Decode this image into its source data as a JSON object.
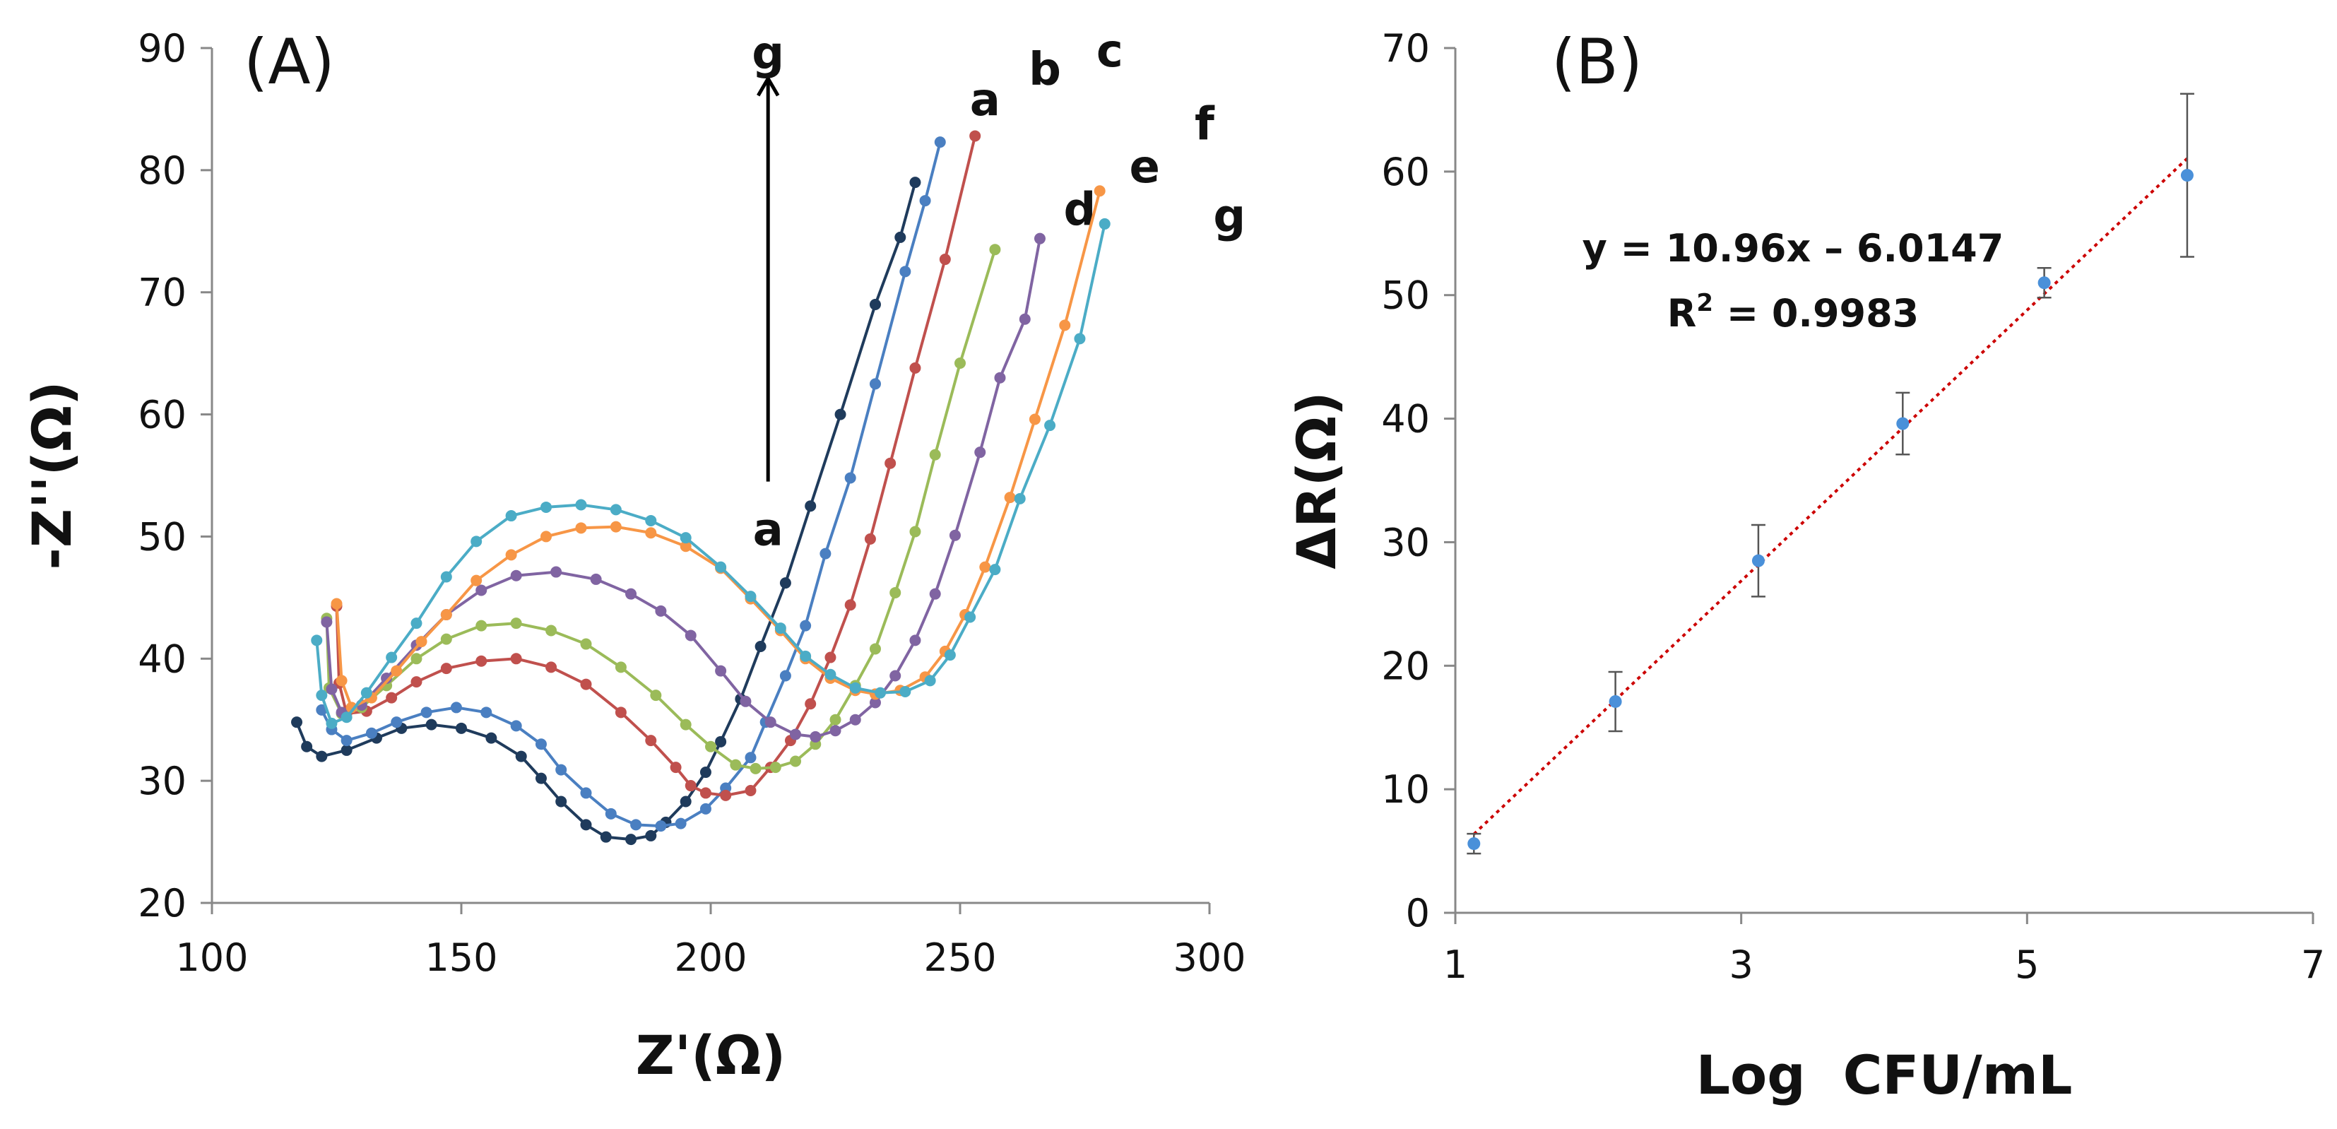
{
  "chart_data": [
    {
      "type": "line",
      "panel": "(A)",
      "xlabel": "Z'(Ω)",
      "ylabel": "-Z''(Ω)",
      "xlim": [
        100,
        300
      ],
      "ylim": [
        20,
        90
      ],
      "xticks": [
        100,
        150,
        200,
        250,
        300
      ],
      "yticks": [
        20,
        30,
        40,
        50,
        60,
        70,
        80,
        90
      ],
      "arrow": {
        "from_label": "a",
        "to_label": "g",
        "x": 211.5,
        "y_start": 54.5,
        "y_end": 87.5
      },
      "series": [
        {
          "name": "a",
          "color": "#1f3b5c",
          "points": [
            [
              117,
              34.8
            ],
            [
              119,
              32.8
            ],
            [
              122,
              32.0
            ],
            [
              127,
              32.5
            ],
            [
              133,
              33.5
            ],
            [
              138,
              34.3
            ],
            [
              144,
              34.6
            ],
            [
              150,
              34.3
            ],
            [
              156,
              33.5
            ],
            [
              162,
              32.0
            ],
            [
              166,
              30.2
            ],
            [
              170,
              28.3
            ],
            [
              175,
              26.4
            ],
            [
              179,
              25.4
            ],
            [
              184,
              25.2
            ],
            [
              188,
              25.5
            ],
            [
              191,
              26.6
            ],
            [
              195,
              28.3
            ],
            [
              199,
              30.7
            ],
            [
              202,
              33.2
            ],
            [
              206,
              36.7
            ],
            [
              210,
              41.0
            ],
            [
              215,
              46.2
            ],
            [
              220,
              52.5
            ],
            [
              226,
              60.0
            ],
            [
              233,
              69.0
            ],
            [
              238,
              74.5
            ],
            [
              241,
              79.0
            ]
          ],
          "label_pos": [
            255,
            84.5
          ]
        },
        {
          "name": "b",
          "color": "#4a7fc1",
          "points": [
            [
              122,
              35.8
            ],
            [
              124,
              34.2
            ],
            [
              127,
              33.3
            ],
            [
              132,
              33.9
            ],
            [
              137,
              34.8
            ],
            [
              143,
              35.6
            ],
            [
              149,
              36.0
            ],
            [
              155,
              35.6
            ],
            [
              161,
              34.5
            ],
            [
              166,
              33.0
            ],
            [
              170,
              30.9
            ],
            [
              175,
              29.0
            ],
            [
              180,
              27.3
            ],
            [
              185,
              26.4
            ],
            [
              190,
              26.3
            ],
            [
              194,
              26.5
            ],
            [
              199,
              27.7
            ],
            [
              203,
              29.4
            ],
            [
              208,
              31.9
            ],
            [
              211,
              34.8
            ],
            [
              215,
              38.6
            ],
            [
              219,
              42.7
            ],
            [
              223,
              48.6
            ],
            [
              228,
              54.8
            ],
            [
              233,
              62.5
            ],
            [
              239,
              71.7
            ],
            [
              243,
              77.5
            ],
            [
              246,
              82.3
            ]
          ],
          "label_pos": [
            267,
            87.0
          ]
        },
        {
          "name": "c",
          "color": "#c0504d",
          "points": [
            [
              125,
              44.3
            ],
            [
              125.5,
              38.0
            ],
            [
              127,
              35.5
            ],
            [
              131,
              35.7
            ],
            [
              136,
              36.8
            ],
            [
              141,
              38.1
            ],
            [
              147,
              39.2
            ],
            [
              154,
              39.8
            ],
            [
              161,
              40.0
            ],
            [
              168,
              39.3
            ],
            [
              175,
              37.9
            ],
            [
              182,
              35.6
            ],
            [
              188,
              33.3
            ],
            [
              193,
              31.1
            ],
            [
              196,
              29.6
            ],
            [
              199,
              29.0
            ],
            [
              203,
              28.8
            ],
            [
              208,
              29.2
            ],
            [
              212,
              31.1
            ],
            [
              216,
              33.3
            ],
            [
              220,
              36.3
            ],
            [
              224,
              40.1
            ],
            [
              228,
              44.4
            ],
            [
              232,
              49.8
            ],
            [
              236,
              56.0
            ],
            [
              241,
              63.8
            ],
            [
              247,
              72.7
            ],
            [
              253,
              82.8
            ]
          ],
          "label_pos": [
            280,
            88.5
          ]
        },
        {
          "name": "d",
          "color": "#9bbb59",
          "points": [
            [
              123,
              43.3
            ],
            [
              123.5,
              37.6
            ],
            [
              126,
              35.5
            ],
            [
              130,
              36.0
            ],
            [
              135,
              37.8
            ],
            [
              141,
              40.0
            ],
            [
              147,
              41.6
            ],
            [
              154,
              42.7
            ],
            [
              161,
              42.9
            ],
            [
              168,
              42.3
            ],
            [
              175,
              41.2
            ],
            [
              182,
              39.3
            ],
            [
              189,
              37.0
            ],
            [
              195,
              34.6
            ],
            [
              200,
              32.8
            ],
            [
              205,
              31.3
            ],
            [
              209,
              31.0
            ],
            [
              213,
              31.1
            ],
            [
              217,
              31.6
            ],
            [
              221,
              33.0
            ],
            [
              225,
              35.0
            ],
            [
              229,
              37.8
            ],
            [
              233,
              40.8
            ],
            [
              237,
              45.4
            ],
            [
              241,
              50.4
            ],
            [
              245,
              56.7
            ],
            [
              250,
              64.2
            ],
            [
              257,
              73.5
            ]
          ],
          "label_pos": [
            274,
            75.5
          ]
        },
        {
          "name": "e",
          "color": "#8064a2",
          "points": [
            [
              123,
              43.0
            ],
            [
              124,
              37.5
            ],
            [
              126,
              35.6
            ],
            [
              130,
              36.2
            ],
            [
              135,
              38.4
            ],
            [
              141,
              41.1
            ],
            [
              147,
              43.6
            ],
            [
              154,
              45.6
            ],
            [
              161,
              46.8
            ],
            [
              169,
              47.1
            ],
            [
              177,
              46.5
            ],
            [
              184,
              45.3
            ],
            [
              190,
              43.9
            ],
            [
              196,
              41.9
            ],
            [
              202,
              39.0
            ],
            [
              207,
              36.5
            ],
            [
              212,
              34.8
            ],
            [
              217,
              33.8
            ],
            [
              221,
              33.6
            ],
            [
              225,
              34.1
            ],
            [
              229,
              35.0
            ],
            [
              233,
              36.4
            ],
            [
              237,
              38.6
            ],
            [
              241,
              41.5
            ],
            [
              245,
              45.3
            ],
            [
              249,
              50.1
            ],
            [
              254,
              56.9
            ],
            [
              258,
              63.0
            ],
            [
              263,
              67.8
            ],
            [
              266,
              74.4
            ]
          ],
          "label_pos": [
            287,
            79.0
          ]
        },
        {
          "name": "f",
          "color": "#f79646",
          "points": [
            [
              125,
              44.5
            ],
            [
              126,
              38.2
            ],
            [
              128,
              36.0
            ],
            [
              132,
              36.8
            ],
            [
              137,
              39.0
            ],
            [
              142,
              41.4
            ],
            [
              147,
              43.6
            ],
            [
              153,
              46.4
            ],
            [
              160,
              48.5
            ],
            [
              167,
              50.0
            ],
            [
              174,
              50.7
            ],
            [
              181,
              50.8
            ],
            [
              188,
              50.3
            ],
            [
              195,
              49.2
            ],
            [
              202,
              47.4
            ],
            [
              208,
              44.9
            ],
            [
              214,
              42.3
            ],
            [
              219,
              40.0
            ],
            [
              224,
              38.4
            ],
            [
              229,
              37.4
            ],
            [
              233,
              37.1
            ],
            [
              238,
              37.4
            ],
            [
              243,
              38.5
            ],
            [
              247,
              40.6
            ],
            [
              251,
              43.6
            ],
            [
              255,
              47.5
            ],
            [
              260,
              53.2
            ],
            [
              265,
              59.6
            ],
            [
              271,
              67.3
            ],
            [
              278,
              78.3
            ]
          ],
          "label_pos": [
            299,
            82.5
          ]
        },
        {
          "name": "g",
          "color": "#4bacc6",
          "points": [
            [
              121,
              41.5
            ],
            [
              122,
              37.0
            ],
            [
              124,
              34.7
            ],
            [
              127,
              35.2
            ],
            [
              131,
              37.2
            ],
            [
              136,
              40.1
            ],
            [
              141,
              42.9
            ],
            [
              147,
              46.7
            ],
            [
              153,
              49.6
            ],
            [
              160,
              51.7
            ],
            [
              167,
              52.4
            ],
            [
              174,
              52.6
            ],
            [
              181,
              52.2
            ],
            [
              188,
              51.3
            ],
            [
              195,
              49.9
            ],
            [
              202,
              47.5
            ],
            [
              208,
              45.1
            ],
            [
              214,
              42.5
            ],
            [
              219,
              40.2
            ],
            [
              224,
              38.7
            ],
            [
              229,
              37.6
            ],
            [
              234,
              37.2
            ],
            [
              239,
              37.3
            ],
            [
              244,
              38.2
            ],
            [
              248,
              40.3
            ],
            [
              252,
              43.4
            ],
            [
              257,
              47.3
            ],
            [
              262,
              53.1
            ],
            [
              268,
              59.1
            ],
            [
              274,
              66.2
            ],
            [
              279,
              75.6
            ]
          ],
          "label_pos": [
            304,
            75.0
          ]
        }
      ]
    },
    {
      "type": "scatter",
      "panel": "(B)",
      "xlabel": "Log  CFU/mL",
      "ylabel": "ΔR(Ω)",
      "xlim": [
        1,
        7
      ],
      "ylim": [
        0,
        70
      ],
      "xticks": [
        1,
        3,
        5,
        7
      ],
      "yticks": [
        0,
        10,
        20,
        30,
        40,
        50,
        60,
        70
      ],
      "points": [
        {
          "x": 1.13,
          "y": 5.6,
          "err": 0.8
        },
        {
          "x": 2.12,
          "y": 17.1,
          "err": 2.4
        },
        {
          "x": 3.12,
          "y": 28.5,
          "err": 2.9
        },
        {
          "x": 4.13,
          "y": 39.6,
          "err": 2.5
        },
        {
          "x": 5.12,
          "y": 51.0,
          "err": 1.2
        },
        {
          "x": 6.12,
          "y": 59.7,
          "err": 6.6
        }
      ],
      "trendline": {
        "slope": 10.96,
        "intercept": -6.0147,
        "x_range": [
          1.13,
          6.12
        ],
        "color": "#cc0000"
      },
      "equation": "y = 10.96x – 6.0147",
      "r2_label": "R",
      "r2_sup": "2",
      "r2_value": " = 0.9983",
      "marker_color": "#4a90d9"
    }
  ]
}
